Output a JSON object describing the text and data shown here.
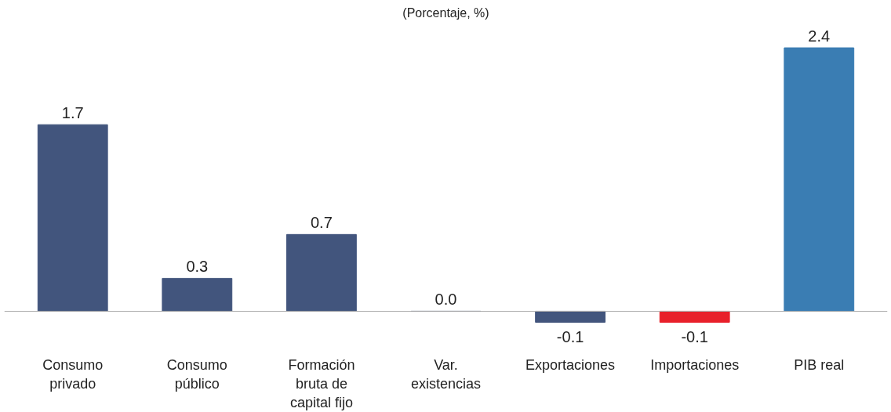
{
  "chart_data": {
    "type": "bar",
    "subtitle": "(Porcentaje, %)",
    "categories": [
      "Consumo privado",
      "Consumo público",
      "Formación bruta de capital fijo",
      "Var. existencias",
      "Exportaciones",
      "Importaciones",
      "PIB real"
    ],
    "values": [
      1.7,
      0.3,
      0.7,
      0.0,
      -0.1,
      -0.1,
      2.4
    ],
    "colors": [
      "#42557d",
      "#42557d",
      "#42557d",
      "#42557d",
      "#42557d",
      "#e8202a",
      "#3a7db3"
    ],
    "value_labels": [
      "1.7",
      "0.3",
      "0.7",
      "0.0",
      "-0.1",
      "-0.1",
      "2.4"
    ],
    "grid": false
  }
}
